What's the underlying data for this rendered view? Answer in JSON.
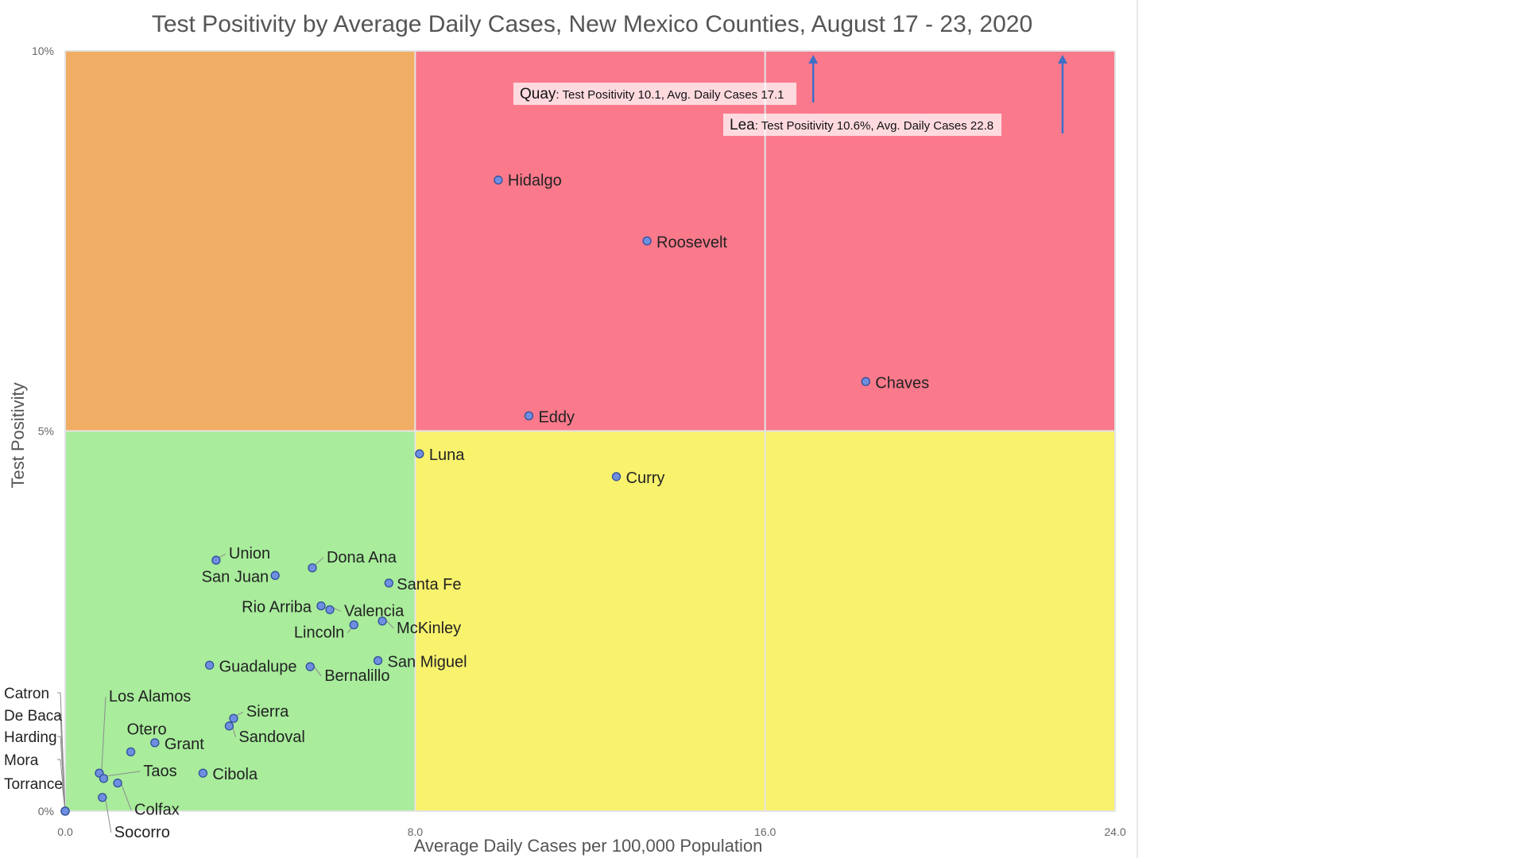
{
  "chart_data": {
    "type": "scatter",
    "title": "Test Positivity by Average Daily Cases, New Mexico Counties, August 17 - 23, 2020",
    "xlabel": "Average Daily Cases per 100,000 Population",
    "ylabel": "Test Positivity",
    "xlim": [
      0,
      24
    ],
    "ylim": [
      0,
      10
    ],
    "x_ticks": [
      "0.0",
      "8.0",
      "16.0",
      "24.0"
    ],
    "y_ticks": [
      "0%",
      "5%",
      "10%"
    ],
    "quadrant_colors": {
      "upper_left": "#F0AE64",
      "upper_right": "#FA7A8C",
      "lower_left": "#A8EC9C",
      "lower_right": "#F9F26D"
    },
    "point_color": "#6F8EE0",
    "grid": true,
    "points": [
      {
        "label": "Hidalgo",
        "x": 9.9,
        "y": 8.3
      },
      {
        "label": "Roosevelt",
        "x": 13.3,
        "y": 7.5
      },
      {
        "label": "Chaves",
        "x": 18.3,
        "y": 5.65
      },
      {
        "label": "Eddy",
        "x": 10.6,
        "y": 5.2
      },
      {
        "label": "Luna",
        "x": 8.1,
        "y": 4.7
      },
      {
        "label": "Curry",
        "x": 12.6,
        "y": 4.4
      },
      {
        "label": "Union",
        "x": 3.45,
        "y": 3.3
      },
      {
        "label": "Dona Ana",
        "x": 5.65,
        "y": 3.2
      },
      {
        "label": "San Juan",
        "x": 4.8,
        "y": 3.1
      },
      {
        "label": "Santa Fe",
        "x": 7.4,
        "y": 3.0
      },
      {
        "label": "Rio Arriba",
        "x": 5.85,
        "y": 2.7
      },
      {
        "label": "Valencia",
        "x": 6.05,
        "y": 2.65
      },
      {
        "label": "McKinley",
        "x": 7.25,
        "y": 2.5
      },
      {
        "label": "Lincoln",
        "x": 6.6,
        "y": 2.45
      },
      {
        "label": "San Miguel",
        "x": 7.15,
        "y": 1.98
      },
      {
        "label": "Guadalupe",
        "x": 3.3,
        "y": 1.92
      },
      {
        "label": "Bernalillo",
        "x": 5.6,
        "y": 1.9
      },
      {
        "label": "Sierra",
        "x": 3.85,
        "y": 1.22
      },
      {
        "label": "Sandoval",
        "x": 3.75,
        "y": 1.12
      },
      {
        "label": "Grant",
        "x": 2.05,
        "y": 0.9
      },
      {
        "label": "Otero",
        "x": 1.5,
        "y": 0.78
      },
      {
        "label": "Cibola",
        "x": 3.15,
        "y": 0.5
      },
      {
        "label": "Los Alamos",
        "x": 0.78,
        "y": 0.5
      },
      {
        "label": "Taos",
        "x": 0.88,
        "y": 0.43
      },
      {
        "label": "Colfax",
        "x": 1.2,
        "y": 0.37
      },
      {
        "label": "Socorro",
        "x": 0.85,
        "y": 0.18
      },
      {
        "label": "Catron",
        "x": 0,
        "y": 0
      },
      {
        "label": "De Baca",
        "x": 0,
        "y": 0
      },
      {
        "label": "Harding",
        "x": 0,
        "y": 0
      },
      {
        "label": "Mora",
        "x": 0,
        "y": 0
      },
      {
        "label": "Torrance",
        "x": 0,
        "y": 0
      }
    ],
    "annotations": [
      {
        "name": "Quay",
        "text": ": Test Positivity 10.1, Avg. Daily Cases 17.1",
        "x": 17.1,
        "y": 10.1
      },
      {
        "name": "Lea",
        "text": ": Test Positivity 10.6%, Avg. Daily Cases 22.8",
        "x": 22.8,
        "y": 10.6
      }
    ]
  }
}
